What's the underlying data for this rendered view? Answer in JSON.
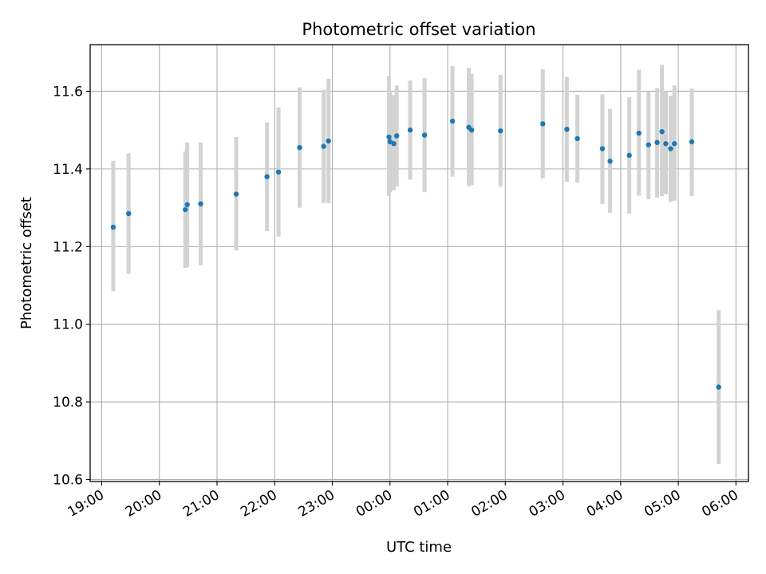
{
  "chart_data": {
    "type": "scatter",
    "title": "Photometric offset variation",
    "xlabel": "UTC time",
    "ylabel": "Photometric offset",
    "x_tick_labels": [
      "19:00",
      "20:00",
      "21:00",
      "22:00",
      "23:00",
      "00:00",
      "01:00",
      "02:00",
      "03:00",
      "04:00",
      "05:00",
      "06:00"
    ],
    "y_tick_labels": [
      "10.6",
      "10.8",
      "11.0",
      "11.2",
      "11.4",
      "11.6"
    ],
    "y_ticks": [
      10.6,
      10.8,
      11.0,
      11.2,
      11.4,
      11.6
    ],
    "xlim": [
      "18:48",
      "06:13"
    ],
    "ylim": [
      10.595,
      11.72
    ],
    "grid": true,
    "colors": {
      "point": "#1f77b4",
      "errorbar": "#d3d3d3",
      "grid": "#b0b0b0"
    },
    "points": [
      {
        "x": "19:12",
        "y": 11.25,
        "lo": 11.085,
        "hi": 11.42
      },
      {
        "x": "19:28",
        "y": 11.285,
        "lo": 11.13,
        "hi": 11.44
      },
      {
        "x": "20:27",
        "y": 11.295,
        "lo": 11.145,
        "hi": 11.445
      },
      {
        "x": "20:29",
        "y": 11.308,
        "lo": 11.148,
        "hi": 11.468
      },
      {
        "x": "20:43",
        "y": 11.31,
        "lo": 11.152,
        "hi": 11.468
      },
      {
        "x": "21:20",
        "y": 11.335,
        "lo": 11.19,
        "hi": 11.482
      },
      {
        "x": "21:52",
        "y": 11.38,
        "lo": 11.24,
        "hi": 11.52
      },
      {
        "x": "22:04",
        "y": 11.392,
        "lo": 11.226,
        "hi": 11.558
      },
      {
        "x": "22:26",
        "y": 11.455,
        "lo": 11.3,
        "hi": 11.61
      },
      {
        "x": "22:51",
        "y": 11.458,
        "lo": 11.312,
        "hi": 11.604
      },
      {
        "x": "22:56",
        "y": 11.472,
        "lo": 11.312,
        "hi": 11.632
      },
      {
        "x": "23:59",
        "y": 11.482,
        "lo": 11.33,
        "hi": 11.64
      },
      {
        "x": "00:00",
        "y": 11.47,
        "lo": 11.34,
        "hi": 11.6
      },
      {
        "x": "00:04",
        "y": 11.465,
        "lo": 11.345,
        "hi": 11.59
      },
      {
        "x": "00:07",
        "y": 11.485,
        "lo": 11.355,
        "hi": 11.615
      },
      {
        "x": "00:21",
        "y": 11.5,
        "lo": 11.372,
        "hi": 11.628
      },
      {
        "x": "00:36",
        "y": 11.487,
        "lo": 11.34,
        "hi": 11.634
      },
      {
        "x": "01:05",
        "y": 11.523,
        "lo": 11.38,
        "hi": 11.665
      },
      {
        "x": "01:22",
        "y": 11.507,
        "lo": 11.355,
        "hi": 11.66
      },
      {
        "x": "01:25",
        "y": 11.5,
        "lo": 11.358,
        "hi": 11.645
      },
      {
        "x": "01:55",
        "y": 11.498,
        "lo": 11.354,
        "hi": 11.642
      },
      {
        "x": "02:39",
        "y": 11.516,
        "lo": 11.376,
        "hi": 11.657
      },
      {
        "x": "03:04",
        "y": 11.502,
        "lo": 11.367,
        "hi": 11.637
      },
      {
        "x": "03:15",
        "y": 11.478,
        "lo": 11.365,
        "hi": 11.591
      },
      {
        "x": "03:41",
        "y": 11.452,
        "lo": 11.31,
        "hi": 11.592
      },
      {
        "x": "03:49",
        "y": 11.42,
        "lo": 11.287,
        "hi": 11.555
      },
      {
        "x": "04:09",
        "y": 11.435,
        "lo": 11.285,
        "hi": 11.585
      },
      {
        "x": "04:19",
        "y": 11.492,
        "lo": 11.331,
        "hi": 11.655
      },
      {
        "x": "04:29",
        "y": 11.462,
        "lo": 11.322,
        "hi": 11.598
      },
      {
        "x": "04:38",
        "y": 11.468,
        "lo": 11.326,
        "hi": 11.608
      },
      {
        "x": "04:43",
        "y": 11.496,
        "lo": 11.33,
        "hi": 11.668
      },
      {
        "x": "04:47",
        "y": 11.465,
        "lo": 11.335,
        "hi": 11.6
      },
      {
        "x": "04:52",
        "y": 11.452,
        "lo": 11.315,
        "hi": 11.588
      },
      {
        "x": "04:56",
        "y": 11.465,
        "lo": 11.318,
        "hi": 11.615
      },
      {
        "x": "05:14",
        "y": 11.47,
        "lo": 11.33,
        "hi": 11.607
      },
      {
        "x": "05:42",
        "y": 10.838,
        "lo": 10.64,
        "hi": 11.036
      }
    ]
  }
}
